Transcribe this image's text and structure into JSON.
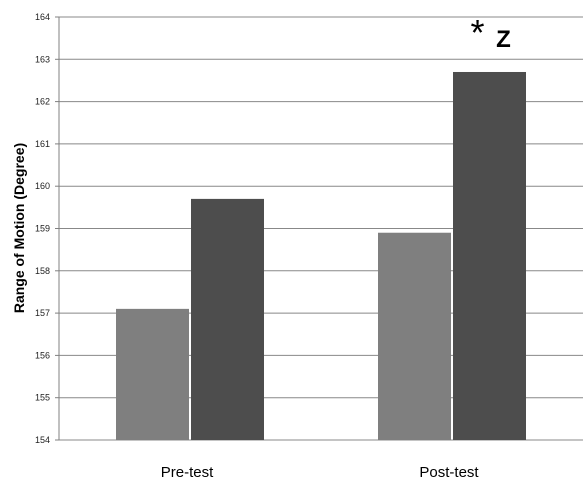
{
  "chart_data": {
    "type": "bar",
    "title": "",
    "xlabel": "",
    "ylabel": "Range of Motion (Degree)",
    "ylim": [
      154,
      164
    ],
    "yticks": [
      154,
      155,
      156,
      157,
      158,
      159,
      160,
      161,
      162,
      163,
      164
    ],
    "grid": true,
    "legend": "none",
    "categories": [
      "Pre-test",
      "Post-test"
    ],
    "series": [
      {
        "color": "#7f7f7f",
        "values": [
          157.1,
          158.9
        ]
      },
      {
        "color": "#4d4d4d",
        "values": [
          159.7,
          162.7
        ]
      }
    ],
    "annotations": [
      {
        "category": "Post-test",
        "series_index": 1,
        "symbol": "*",
        "text": "Z"
      }
    ]
  }
}
